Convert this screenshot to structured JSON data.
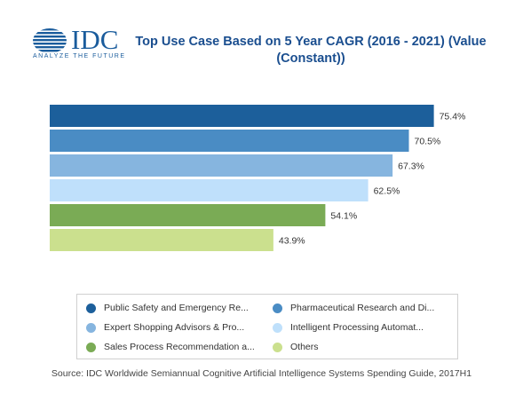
{
  "logo": {
    "text": "IDC",
    "tagline": "ANALYZE THE FUTURE",
    "color": "#1a5c9c"
  },
  "chart_data": {
    "type": "bar",
    "orientation": "horizontal",
    "title": "Top Use Case Based on 5 Year CAGR (2016 - 2021) (Value (Constant))",
    "xlabel": "",
    "ylabel": "",
    "xlim": [
      0,
      80
    ],
    "grid": false,
    "legend_position": "bottom",
    "series": [
      {
        "name": "Public Safety and Emergency Re...",
        "value": 75.4,
        "label": "75.4%",
        "color": "#1c5f9b"
      },
      {
        "name": "Pharmaceutical Research and Di...",
        "value": 70.5,
        "label": "70.5%",
        "color": "#4a8cc4"
      },
      {
        "name": "Expert Shopping Advisors & Pro...",
        "value": 67.3,
        "label": "67.3%",
        "color": "#86b5df"
      },
      {
        "name": "Intelligent Processing Automat...",
        "value": 62.5,
        "label": "62.5%",
        "color": "#bfe0fb"
      },
      {
        "name": "Sales Process Recommendation a...",
        "value": 54.1,
        "label": "54.1%",
        "color": "#7aab55"
      },
      {
        "name": "Others",
        "value": 43.9,
        "label": "43.9%",
        "color": "#cbe08e"
      }
    ]
  },
  "source": "Source: IDC Worldwide Semiannual Cognitive Artificial Intelligence Systems Spending Guide, 2017H1"
}
